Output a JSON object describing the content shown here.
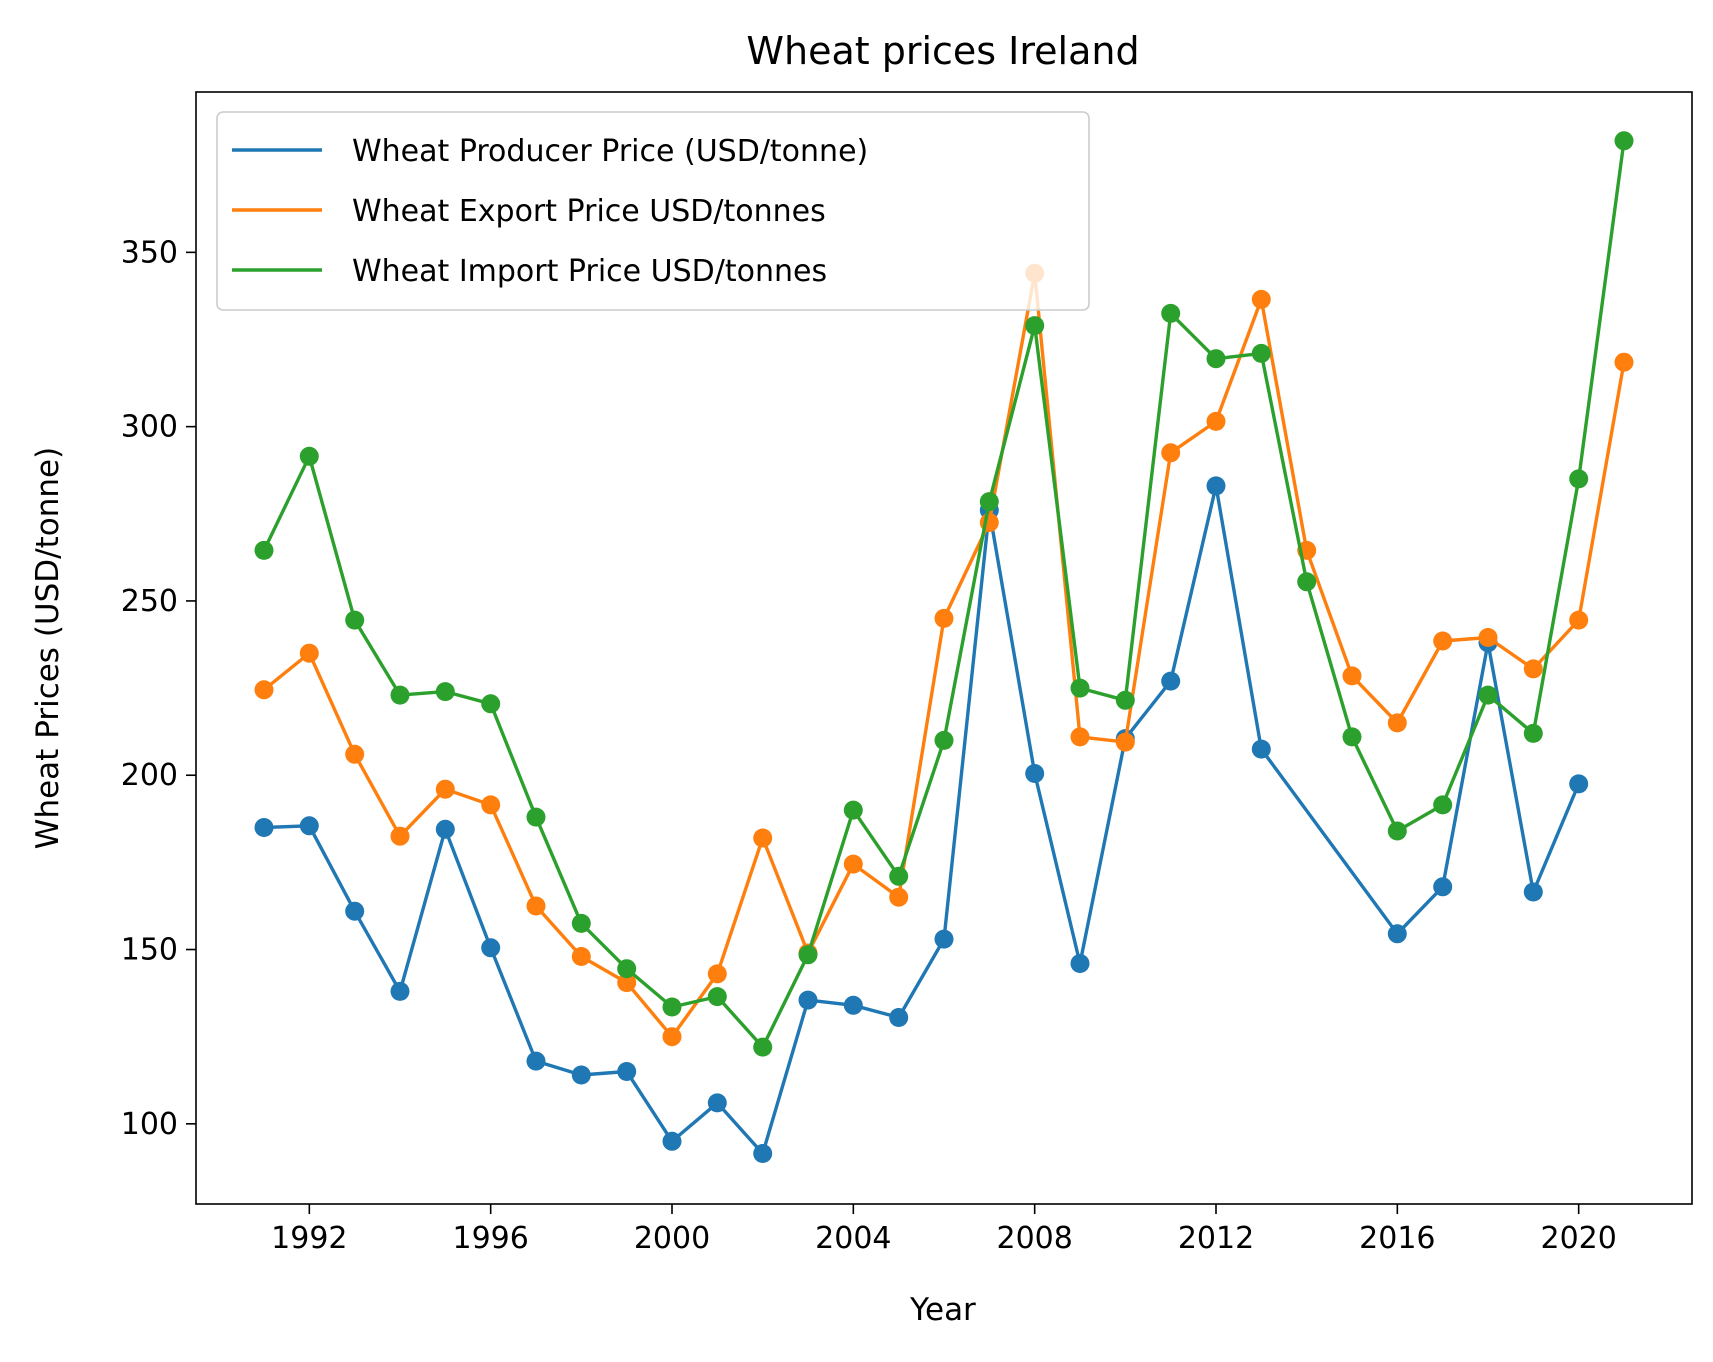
{
  "chart_data": {
    "type": "line",
    "title": "Wheat prices Ireland",
    "xlabel": "Year",
    "ylabel": "Wheat Prices (USD/tonne)",
    "xlim": [
      1989.5,
      2022.5
    ],
    "ylim": [
      77,
      396
    ],
    "xticks": [
      1992,
      1996,
      2000,
      2004,
      2008,
      2012,
      2016,
      2020
    ],
    "yticks": [
      100,
      150,
      200,
      250,
      300,
      350
    ],
    "grid": false,
    "legend_position": "upper left",
    "series": [
      {
        "name": "Wheat Producer Price (USD/tonne)",
        "color": "#1f77b4",
        "points": [
          [
            1991,
            185
          ],
          [
            1992,
            185.5
          ],
          [
            1993,
            161
          ],
          [
            1994,
            138
          ],
          [
            1995,
            184.5
          ],
          [
            1996,
            150.5
          ],
          [
            1997,
            118
          ],
          [
            1998,
            114
          ],
          [
            1999,
            115
          ],
          [
            2000,
            95
          ],
          [
            2001,
            106
          ],
          [
            2002,
            91.5
          ],
          [
            2003,
            135.5
          ],
          [
            2004,
            134
          ],
          [
            2005,
            130.5
          ],
          [
            2006,
            153
          ],
          [
            2007,
            276
          ],
          [
            2008,
            200.5
          ],
          [
            2009,
            146
          ],
          [
            2010,
            210.5
          ],
          [
            2011,
            227
          ],
          [
            2012,
            283
          ],
          [
            2013,
            207.5
          ],
          [
            2016,
            154.5
          ],
          [
            2017,
            168
          ],
          [
            2018,
            238
          ],
          [
            2019,
            166.5
          ],
          [
            2020,
            197.5
          ]
        ]
      },
      {
        "name": "Wheat Export Price USD/tonnes",
        "color": "#ff7f0e",
        "points": [
          [
            1991,
            224.5
          ],
          [
            1992,
            235
          ],
          [
            1993,
            206
          ],
          [
            1994,
            182.5
          ],
          [
            1995,
            196
          ],
          [
            1996,
            191.5
          ],
          [
            1997,
            162.5
          ],
          [
            1998,
            148
          ],
          [
            1999,
            140.5
          ],
          [
            2000,
            125
          ],
          [
            2001,
            143
          ],
          [
            2002,
            182
          ],
          [
            2003,
            149
          ],
          [
            2004,
            174.5
          ],
          [
            2005,
            165
          ],
          [
            2006,
            245
          ],
          [
            2007,
            272.5
          ],
          [
            2008,
            344
          ],
          [
            2009,
            211
          ],
          [
            2010,
            209.5
          ],
          [
            2011,
            292.5
          ],
          [
            2012,
            301.5
          ],
          [
            2013,
            336.5
          ],
          [
            2014,
            264.5
          ],
          [
            2015,
            228.5
          ],
          [
            2016,
            215
          ],
          [
            2017,
            238.5
          ],
          [
            2018,
            239.5
          ],
          [
            2019,
            230.5
          ],
          [
            2020,
            244.5
          ],
          [
            2021,
            318.5
          ]
        ]
      },
      {
        "name": "Wheat Import Price USD/tonnes",
        "color": "#2ca02c",
        "points": [
          [
            1991,
            264.5
          ],
          [
            1992,
            291.5
          ],
          [
            1993,
            244.5
          ],
          [
            1994,
            223
          ],
          [
            1995,
            224
          ],
          [
            1996,
            220.5
          ],
          [
            1997,
            188
          ],
          [
            1998,
            157.5
          ],
          [
            1999,
            144.5
          ],
          [
            2000,
            133.5
          ],
          [
            2001,
            136.5
          ],
          [
            2002,
            122
          ],
          [
            2003,
            148.5
          ],
          [
            2004,
            190
          ],
          [
            2005,
            171
          ],
          [
            2006,
            210
          ],
          [
            2007,
            278.5
          ],
          [
            2008,
            329
          ],
          [
            2009,
            225
          ],
          [
            2010,
            221.5
          ],
          [
            2011,
            332.5
          ],
          [
            2012,
            319.5
          ],
          [
            2013,
            321
          ],
          [
            2014,
            255.5
          ],
          [
            2015,
            211
          ],
          [
            2016,
            184
          ],
          [
            2017,
            191.5
          ],
          [
            2018,
            223
          ],
          [
            2019,
            212
          ],
          [
            2020,
            285
          ],
          [
            2021,
            382
          ]
        ]
      }
    ]
  }
}
